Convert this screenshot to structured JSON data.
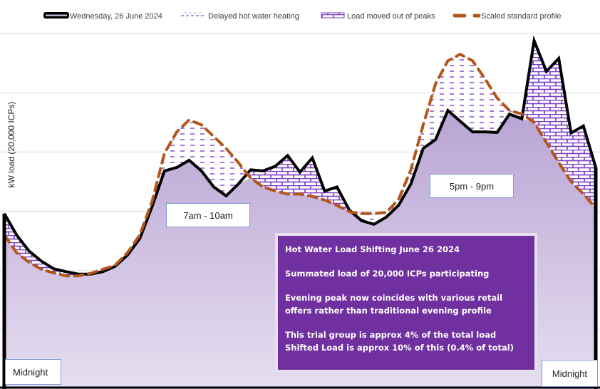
{
  "chart_data": {
    "type": "area",
    "title": "",
    "xlabel": "",
    "ylabel": "kW load (20,000 ICPs)",
    "ylim": [
      0,
      6.1
    ],
    "grid": true,
    "gridlines_y": [
      1,
      2,
      3,
      4,
      5,
      6
    ],
    "legend_position": "top",
    "x": [
      "00:00",
      "00:30",
      "01:00",
      "01:30",
      "02:00",
      "02:30",
      "03:00",
      "03:30",
      "04:00",
      "04:30",
      "05:00",
      "05:30",
      "06:00",
      "06:30",
      "07:00",
      "07:30",
      "08:00",
      "08:30",
      "09:00",
      "09:30",
      "10:00",
      "10:30",
      "11:00",
      "11:30",
      "12:00",
      "12:30",
      "13:00",
      "13:30",
      "14:00",
      "14:30",
      "15:00",
      "15:30",
      "16:00",
      "16:30",
      "17:00",
      "17:30",
      "18:00",
      "18:30",
      "19:00",
      "19:30",
      "20:00",
      "20:30",
      "21:00",
      "21:30",
      "22:00",
      "22:30",
      "23:00",
      "23:30",
      "24:00"
    ],
    "series": [
      {
        "name": "Wednesday, 26 June 2024",
        "style": "solid-black-area",
        "values": [
          2.96,
          2.6,
          2.33,
          2.16,
          2.03,
          1.98,
          1.94,
          1.94,
          1.98,
          2.07,
          2.26,
          2.54,
          3.08,
          3.68,
          3.74,
          3.86,
          3.68,
          3.41,
          3.26,
          3.46,
          3.7,
          3.68,
          3.76,
          3.94,
          3.66,
          3.9,
          3.34,
          3.41,
          3.02,
          2.84,
          2.78,
          2.9,
          3.1,
          3.46,
          4.06,
          4.21,
          4.7,
          4.52,
          4.34,
          4.34,
          4.33,
          4.64,
          4.56,
          5.88,
          5.36,
          5.58,
          4.32,
          4.44,
          3.74
        ]
      },
      {
        "name": "Scaled standard profile",
        "style": "dashed-orange",
        "values": [
          2.6,
          2.3,
          2.14,
          2.02,
          1.96,
          1.91,
          1.91,
          1.95,
          2.02,
          2.09,
          2.3,
          2.6,
          3.17,
          3.98,
          4.34,
          4.54,
          4.46,
          4.26,
          4.06,
          3.82,
          3.56,
          3.41,
          3.34,
          3.29,
          3.29,
          3.25,
          3.19,
          3.1,
          2.99,
          2.96,
          2.96,
          2.98,
          3.2,
          3.7,
          4.46,
          5.15,
          5.54,
          5.65,
          5.54,
          5.24,
          4.91,
          4.7,
          4.64,
          4.5,
          4.16,
          3.82,
          3.5,
          3.29,
          3.05
        ]
      },
      {
        "name": "Delayed hot water heating",
        "style": "dashed-hatch-fill",
        "description": "area where standard profile exceeds actual load"
      },
      {
        "name": "Load moved out of peaks",
        "style": "brick-hatch-fill",
        "description": "area where actual load exceeds standard profile"
      }
    ],
    "annotations": [
      {
        "text": "7am - 10am"
      },
      {
        "text": "5pm - 9pm"
      },
      {
        "text": "Midnight",
        "position": "bottom-left"
      },
      {
        "text": "Midnight",
        "position": "bottom-right"
      }
    ]
  },
  "legend": {
    "actual": "Wednesday, 26 June 2024",
    "delayed": "Delayed hot water heating",
    "moved": "Load moved out of peaks",
    "standard": "Scaled standard profile"
  },
  "labels": {
    "morning": "7am - 10am",
    "evening": "5pm - 9pm",
    "midnight_start": "Midnight",
    "midnight_end": "Midnight"
  },
  "info_box": {
    "title": "Hot Water Load Shifting June 26 2024",
    "line1": "Summated load of 20,000 ICPs participating",
    "line2a": "Evening peak now coincides with various retail",
    "line2b": "offers rather than traditional evening profile",
    "line3a": "This trial group is approx 4% of the total load",
    "line3b": "Shifted Load is approx 10% of  this (0.4% of total)"
  },
  "colors": {
    "actual_line": "#000000",
    "fill_top": "#bca8d6",
    "fill_bottom": "#e4dcef",
    "standard_line": "#b4561a",
    "hatch": "#7a3cc4",
    "info_bg": "#7030a0",
    "grid": "#e6e6e6"
  }
}
